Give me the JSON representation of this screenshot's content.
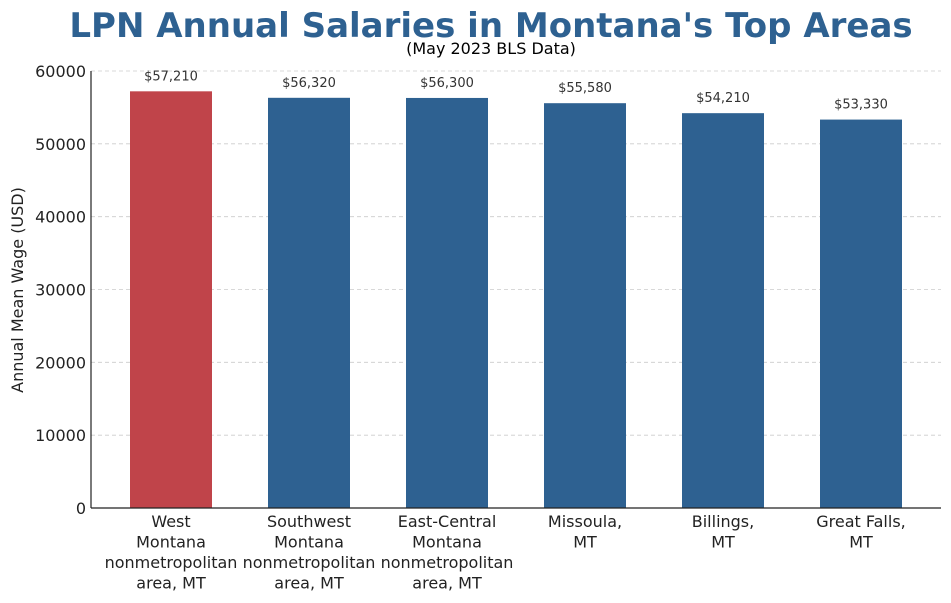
{
  "chart_data": {
    "type": "bar",
    "title": "LPN Annual Salaries in Montana's Top Areas",
    "subtitle": "(May 2023 BLS Data)",
    "xlabel": "",
    "ylabel": "Annual Mean Wage (USD)",
    "ylim": [
      0,
      60000
    ],
    "yticks": [
      0,
      10000,
      20000,
      30000,
      40000,
      50000,
      60000
    ],
    "grid": "horizontal dashed",
    "categories": [
      [
        "West",
        "Montana",
        "nonmetropolitan",
        "area, MT"
      ],
      [
        "Southwest",
        "Montana",
        "nonmetropolitan",
        "area, MT"
      ],
      [
        "East-Central",
        "Montana",
        "nonmetropolitan",
        "area, MT"
      ],
      [
        "Missoula,",
        "MT"
      ],
      [
        "Billings,",
        "MT"
      ],
      [
        "Great Falls,",
        "MT"
      ]
    ],
    "values": [
      57210,
      56320,
      56300,
      55580,
      54210,
      53330
    ],
    "data_labels": [
      "$57,210",
      "$56,320",
      "$56,300",
      "$55,580",
      "$54,210",
      "$53,330"
    ],
    "colors": [
      "#c0444a",
      "#2e6191",
      "#2e6191",
      "#2e6191",
      "#2e6191",
      "#2e6191"
    ],
    "highlight_color": "#c0444a",
    "bar_color": "#2e6191"
  }
}
